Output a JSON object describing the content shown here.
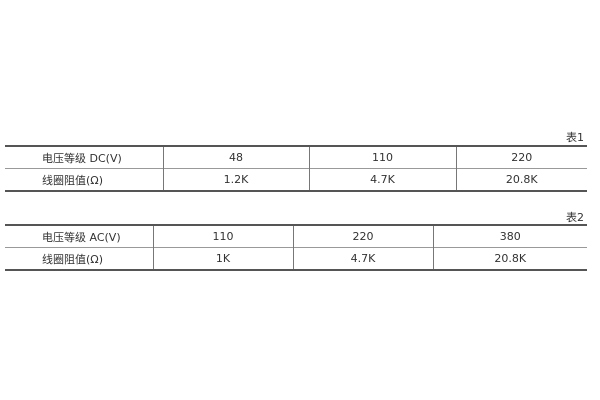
{
  "table1": {
    "caption": "表1",
    "rows": [
      [
        "电压等级 DC(V)",
        "48",
        "110",
        "220"
      ],
      [
        "线圈阻值(Ω)",
        "1.2K",
        "4.7K",
        "20.8K"
      ]
    ]
  },
  "table2": {
    "caption": "表2",
    "rows": [
      [
        "电压等级 AC(V)",
        "110",
        "220",
        "380"
      ],
      [
        "线圈阻值(Ω)",
        "1K",
        "4.7K",
        "20.8K"
      ]
    ]
  }
}
